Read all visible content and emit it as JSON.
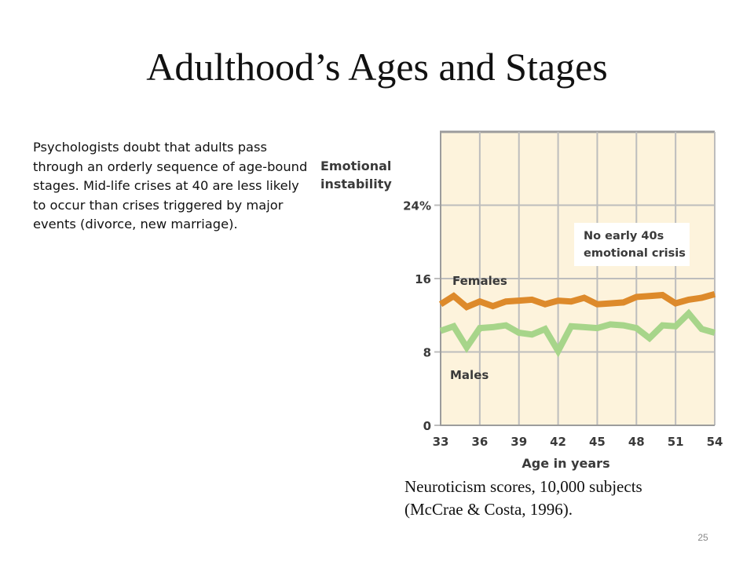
{
  "slide": {
    "title": "Adulthood’s Ages and Stages",
    "body": "Psychologists doubt that adults pass through an orderly sequence of age-bound stages. Mid-life crises at 40 are less likely to occur than crises triggered by major events (divorce, new marriage).",
    "caption_line1": "Neuroticism scores, 10,000 subjects",
    "caption_line2": "(McCrae & Costa, 1996).",
    "slide_number": "25"
  },
  "colors": {
    "plot_bg": "#fdf3dc",
    "grid": "#bdbdbd",
    "females": "#dd8a2b",
    "males": "#a7d58a",
    "text": "#3a3a3a"
  },
  "chart_data": {
    "type": "line",
    "ylabel_lines": [
      "Emotional",
      "instability"
    ],
    "xlabel": "Age in years",
    "x": [
      33,
      34,
      35,
      36,
      37,
      38,
      39,
      40,
      41,
      42,
      43,
      44,
      45,
      46,
      47,
      48,
      49,
      50,
      51,
      52,
      53,
      54
    ],
    "xlim": [
      33,
      54
    ],
    "ylim": [
      0,
      32
    ],
    "xticks": [
      33,
      36,
      39,
      42,
      45,
      48,
      51,
      54
    ],
    "xtick_labels": [
      "33",
      "36",
      "39",
      "42",
      "45",
      "48",
      "51",
      "54"
    ],
    "yticks": [
      0,
      8,
      16,
      24
    ],
    "ytick_labels": [
      "0",
      "8",
      "16",
      "24%"
    ],
    "grid": true,
    "annotation_lines": [
      "No early 40s",
      "emotional crisis"
    ],
    "series": [
      {
        "name": "Females",
        "values": [
          13.2,
          14.1,
          12.9,
          13.5,
          13.0,
          13.5,
          13.6,
          13.7,
          13.2,
          13.6,
          13.5,
          13.9,
          13.2,
          13.3,
          13.4,
          14.0,
          14.1,
          14.2,
          13.3,
          13.7,
          13.9,
          14.3
        ]
      },
      {
        "name": "Males",
        "values": [
          10.3,
          10.8,
          8.5,
          10.6,
          10.7,
          10.9,
          10.1,
          9.9,
          10.5,
          8.1,
          10.8,
          10.7,
          10.6,
          11.0,
          10.9,
          10.6,
          9.5,
          10.9,
          10.8,
          12.2,
          10.5,
          10.1
        ]
      }
    ]
  }
}
